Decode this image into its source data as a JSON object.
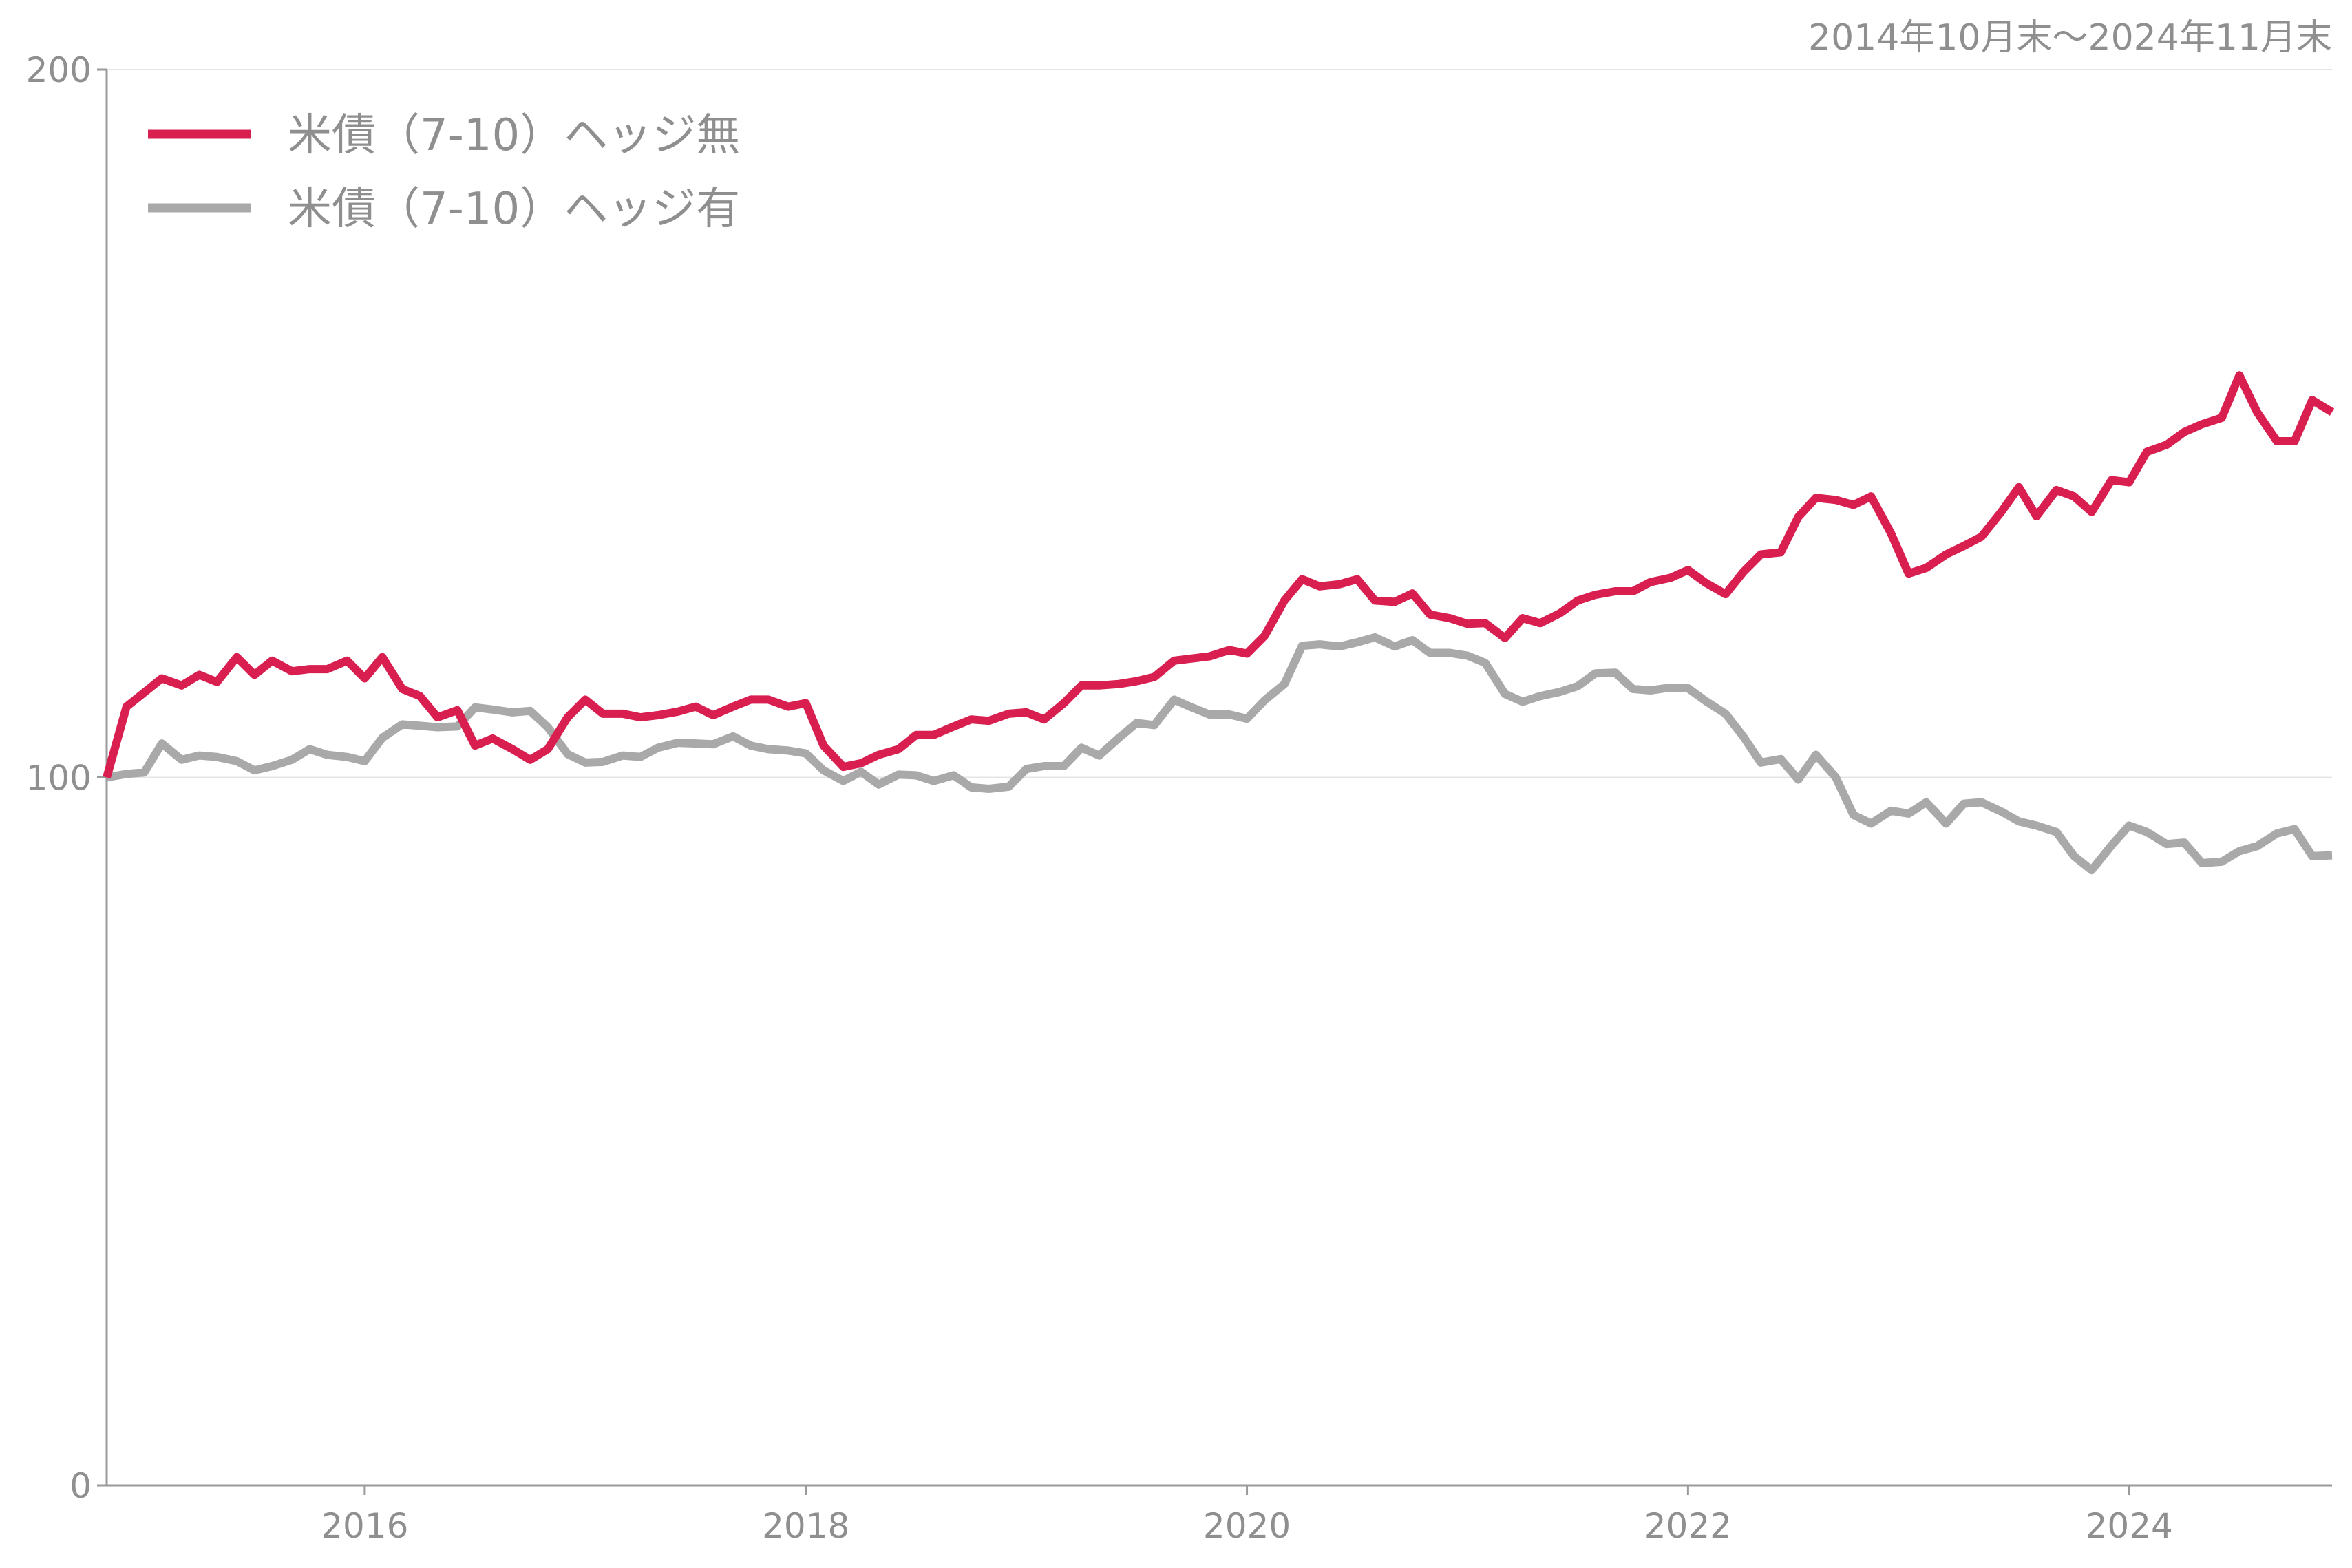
{
  "chart_data": {
    "type": "line",
    "period_label": "2014年10月末～2024年11月末",
    "xlim": [
      2014.83,
      2024.92
    ],
    "ylim": [
      0,
      200
    ],
    "y_ticks": [
      0,
      100,
      200
    ],
    "y_tick_labels": [
      "0",
      "100",
      "200"
    ],
    "x_ticks": [
      2016,
      2018,
      2020,
      2022,
      2024
    ],
    "x_tick_labels": [
      "2016",
      "2018",
      "2020",
      "2022",
      "2024"
    ],
    "grid": "horizontal",
    "legend_position": "top-left",
    "series": [
      {
        "name": "米債（7-10）ヘッジ無",
        "color": "#d81f50",
        "points": [
          [
            2014.83,
            100
          ],
          [
            2014.92,
            110
          ],
          [
            2015.0,
            112
          ],
          [
            2015.08,
            114
          ],
          [
            2015.17,
            113
          ],
          [
            2015.25,
            114.5
          ],
          [
            2015.33,
            113.5
          ],
          [
            2015.42,
            117
          ],
          [
            2015.5,
            114.5
          ],
          [
            2015.58,
            116.5
          ],
          [
            2015.67,
            115
          ],
          [
            2015.75,
            115.3
          ],
          [
            2015.83,
            115.3
          ],
          [
            2015.92,
            116.5
          ],
          [
            2016.0,
            114
          ],
          [
            2016.08,
            117
          ],
          [
            2016.17,
            112.5
          ],
          [
            2016.25,
            111.5
          ],
          [
            2016.33,
            108.5
          ],
          [
            2016.42,
            109.5
          ],
          [
            2016.5,
            104.5
          ],
          [
            2016.58,
            105.5
          ],
          [
            2016.67,
            104
          ],
          [
            2016.75,
            102.5
          ],
          [
            2016.83,
            104
          ],
          [
            2016.92,
            108.5
          ],
          [
            2017.0,
            111
          ],
          [
            2017.08,
            109
          ],
          [
            2017.17,
            109
          ],
          [
            2017.25,
            108.5
          ],
          [
            2017.33,
            108.8
          ],
          [
            2017.42,
            109.3
          ],
          [
            2017.5,
            110
          ],
          [
            2017.58,
            108.8
          ],
          [
            2017.67,
            110
          ],
          [
            2017.75,
            111
          ],
          [
            2017.83,
            111
          ],
          [
            2017.92,
            110
          ],
          [
            2018.0,
            110.5
          ],
          [
            2018.08,
            104.5
          ],
          [
            2018.17,
            101.5
          ],
          [
            2018.25,
            102
          ],
          [
            2018.33,
            103.2
          ],
          [
            2018.42,
            104
          ],
          [
            2018.5,
            106
          ],
          [
            2018.58,
            106
          ],
          [
            2018.67,
            107.2
          ],
          [
            2018.75,
            108.2
          ],
          [
            2018.83,
            108
          ],
          [
            2018.92,
            109
          ],
          [
            2019.0,
            109.2
          ],
          [
            2019.08,
            108.2
          ],
          [
            2019.17,
            110.5
          ],
          [
            2019.25,
            113
          ],
          [
            2019.33,
            113
          ],
          [
            2019.42,
            113.2
          ],
          [
            2019.5,
            113.6
          ],
          [
            2019.58,
            114.2
          ],
          [
            2019.67,
            116.5
          ],
          [
            2019.75,
            116.8
          ],
          [
            2019.83,
            117.1
          ],
          [
            2019.92,
            118
          ],
          [
            2020.0,
            117.5
          ],
          [
            2020.08,
            120
          ],
          [
            2020.17,
            125
          ],
          [
            2020.25,
            128
          ],
          [
            2020.33,
            127
          ],
          [
            2020.42,
            127.3
          ],
          [
            2020.5,
            128
          ],
          [
            2020.58,
            125
          ],
          [
            2020.67,
            124.8
          ],
          [
            2020.75,
            126
          ],
          [
            2020.83,
            123
          ],
          [
            2020.92,
            122.5
          ],
          [
            2021.0,
            121.7
          ],
          [
            2021.08,
            121.8
          ],
          [
            2021.17,
            119.7
          ],
          [
            2021.25,
            122.5
          ],
          [
            2021.33,
            121.8
          ],
          [
            2021.42,
            123.2
          ],
          [
            2021.5,
            125
          ],
          [
            2021.58,
            125.8
          ],
          [
            2021.67,
            126.3
          ],
          [
            2021.75,
            126.3
          ],
          [
            2021.83,
            127.6
          ],
          [
            2021.92,
            128.2
          ],
          [
            2022.0,
            129.3
          ],
          [
            2022.08,
            127.5
          ],
          [
            2022.17,
            125.9
          ],
          [
            2022.25,
            129
          ],
          [
            2022.33,
            131.5
          ],
          [
            2022.42,
            131.8
          ],
          [
            2022.5,
            136.8
          ],
          [
            2022.58,
            139.5
          ],
          [
            2022.67,
            139.2
          ],
          [
            2022.75,
            138.5
          ],
          [
            2022.83,
            139.7
          ],
          [
            2022.92,
            134.5
          ],
          [
            2023.0,
            128.8
          ],
          [
            2023.08,
            129.6
          ],
          [
            2023.17,
            131.5
          ],
          [
            2023.25,
            132.7
          ],
          [
            2023.33,
            134
          ],
          [
            2023.42,
            137.5
          ],
          [
            2023.5,
            141
          ],
          [
            2023.58,
            136.9
          ],
          [
            2023.67,
            140.6
          ],
          [
            2023.75,
            139.7
          ],
          [
            2023.83,
            137.5
          ],
          [
            2023.92,
            142
          ],
          [
            2024.0,
            141.7
          ],
          [
            2024.08,
            146
          ],
          [
            2024.17,
            147
          ],
          [
            2024.25,
            148.8
          ],
          [
            2024.33,
            149.9
          ],
          [
            2024.42,
            150.8
          ],
          [
            2024.5,
            156.8
          ],
          [
            2024.58,
            151.6
          ],
          [
            2024.67,
            147.5
          ],
          [
            2024.75,
            147.5
          ],
          [
            2024.83,
            153.3
          ],
          [
            2024.92,
            151.6
          ]
        ]
      },
      {
        "name": "米債（7-10）ヘッジ有",
        "color": "#a9a9a9",
        "points": [
          [
            2014.83,
            100
          ],
          [
            2014.92,
            100.5
          ],
          [
            2015.0,
            100.7
          ],
          [
            2015.08,
            104.8
          ],
          [
            2015.17,
            102.5
          ],
          [
            2015.25,
            103.1
          ],
          [
            2015.33,
            102.9
          ],
          [
            2015.42,
            102.3
          ],
          [
            2015.5,
            101
          ],
          [
            2015.58,
            101.6
          ],
          [
            2015.67,
            102.5
          ],
          [
            2015.75,
            104
          ],
          [
            2015.83,
            103.2
          ],
          [
            2015.92,
            102.9
          ],
          [
            2016.0,
            102.3
          ],
          [
            2016.08,
            105.6
          ],
          [
            2016.17,
            107.5
          ],
          [
            2016.25,
            107.3
          ],
          [
            2016.33,
            107.1
          ],
          [
            2016.42,
            107.2
          ],
          [
            2016.5,
            109.9
          ],
          [
            2016.58,
            109.6
          ],
          [
            2016.67,
            109.2
          ],
          [
            2016.75,
            109.4
          ],
          [
            2016.83,
            107.1
          ],
          [
            2016.92,
            103.3
          ],
          [
            2017.0,
            102.1
          ],
          [
            2017.08,
            102.2
          ],
          [
            2017.17,
            103.1
          ],
          [
            2017.25,
            102.9
          ],
          [
            2017.33,
            104.2
          ],
          [
            2017.42,
            104.9
          ],
          [
            2017.5,
            104.8
          ],
          [
            2017.58,
            104.7
          ],
          [
            2017.67,
            105.8
          ],
          [
            2017.75,
            104.5
          ],
          [
            2017.83,
            104
          ],
          [
            2017.92,
            103.8
          ],
          [
            2018.0,
            103.4
          ],
          [
            2018.08,
            101
          ],
          [
            2018.17,
            99.5
          ],
          [
            2018.25,
            100.8
          ],
          [
            2018.33,
            99
          ],
          [
            2018.42,
            100.4
          ],
          [
            2018.5,
            100.3
          ],
          [
            2018.58,
            99.5
          ],
          [
            2018.67,
            100.3
          ],
          [
            2018.75,
            98.6
          ],
          [
            2018.83,
            98.4
          ],
          [
            2018.92,
            98.7
          ],
          [
            2019.0,
            101.2
          ],
          [
            2019.08,
            101.6
          ],
          [
            2019.17,
            101.6
          ],
          [
            2019.25,
            104.2
          ],
          [
            2019.33,
            103.1
          ],
          [
            2019.42,
            105.6
          ],
          [
            2019.5,
            107.7
          ],
          [
            2019.58,
            107.4
          ],
          [
            2019.67,
            111
          ],
          [
            2019.75,
            109.9
          ],
          [
            2019.83,
            108.9
          ],
          [
            2019.92,
            108.9
          ],
          [
            2020.0,
            108.3
          ],
          [
            2020.08,
            110.9
          ],
          [
            2020.17,
            113.2
          ],
          [
            2020.25,
            118.6
          ],
          [
            2020.33,
            118.8
          ],
          [
            2020.42,
            118.5
          ],
          [
            2020.5,
            119.1
          ],
          [
            2020.58,
            119.8
          ],
          [
            2020.67,
            118.5
          ],
          [
            2020.75,
            119.4
          ],
          [
            2020.83,
            117.6
          ],
          [
            2020.92,
            117.6
          ],
          [
            2021.0,
            117.2
          ],
          [
            2021.08,
            116.2
          ],
          [
            2021.17,
            111.8
          ],
          [
            2021.25,
            110.7
          ],
          [
            2021.33,
            111.5
          ],
          [
            2021.42,
            112.1
          ],
          [
            2021.5,
            112.9
          ],
          [
            2021.58,
            114.7
          ],
          [
            2021.67,
            114.8
          ],
          [
            2021.75,
            112.5
          ],
          [
            2021.83,
            112.3
          ],
          [
            2021.92,
            112.7
          ],
          [
            2022.0,
            112.6
          ],
          [
            2022.08,
            110.8
          ],
          [
            2022.17,
            109
          ],
          [
            2022.25,
            105.8
          ],
          [
            2022.33,
            102.1
          ],
          [
            2022.42,
            102.6
          ],
          [
            2022.5,
            99.7
          ],
          [
            2022.58,
            103.2
          ],
          [
            2022.67,
            100
          ],
          [
            2022.75,
            94.7
          ],
          [
            2022.83,
            93.5
          ],
          [
            2022.92,
            95.3
          ],
          [
            2023.0,
            94.9
          ],
          [
            2023.08,
            96.5
          ],
          [
            2023.17,
            93.5
          ],
          [
            2023.25,
            96.3
          ],
          [
            2023.33,
            96.5
          ],
          [
            2023.42,
            95.2
          ],
          [
            2023.5,
            93.8
          ],
          [
            2023.58,
            93.2
          ],
          [
            2023.67,
            92.3
          ],
          [
            2023.75,
            88.9
          ],
          [
            2023.83,
            86.9
          ],
          [
            2023.92,
            90.4
          ],
          [
            2024.0,
            93.2
          ],
          [
            2024.08,
            92.3
          ],
          [
            2024.17,
            90.6
          ],
          [
            2024.25,
            90.8
          ],
          [
            2024.33,
            87.9
          ],
          [
            2024.42,
            88.1
          ],
          [
            2024.5,
            89.6
          ],
          [
            2024.58,
            90.3
          ],
          [
            2024.67,
            92.1
          ],
          [
            2024.75,
            92.7
          ],
          [
            2024.83,
            88.9
          ],
          [
            2024.92,
            89
          ]
        ]
      }
    ]
  }
}
